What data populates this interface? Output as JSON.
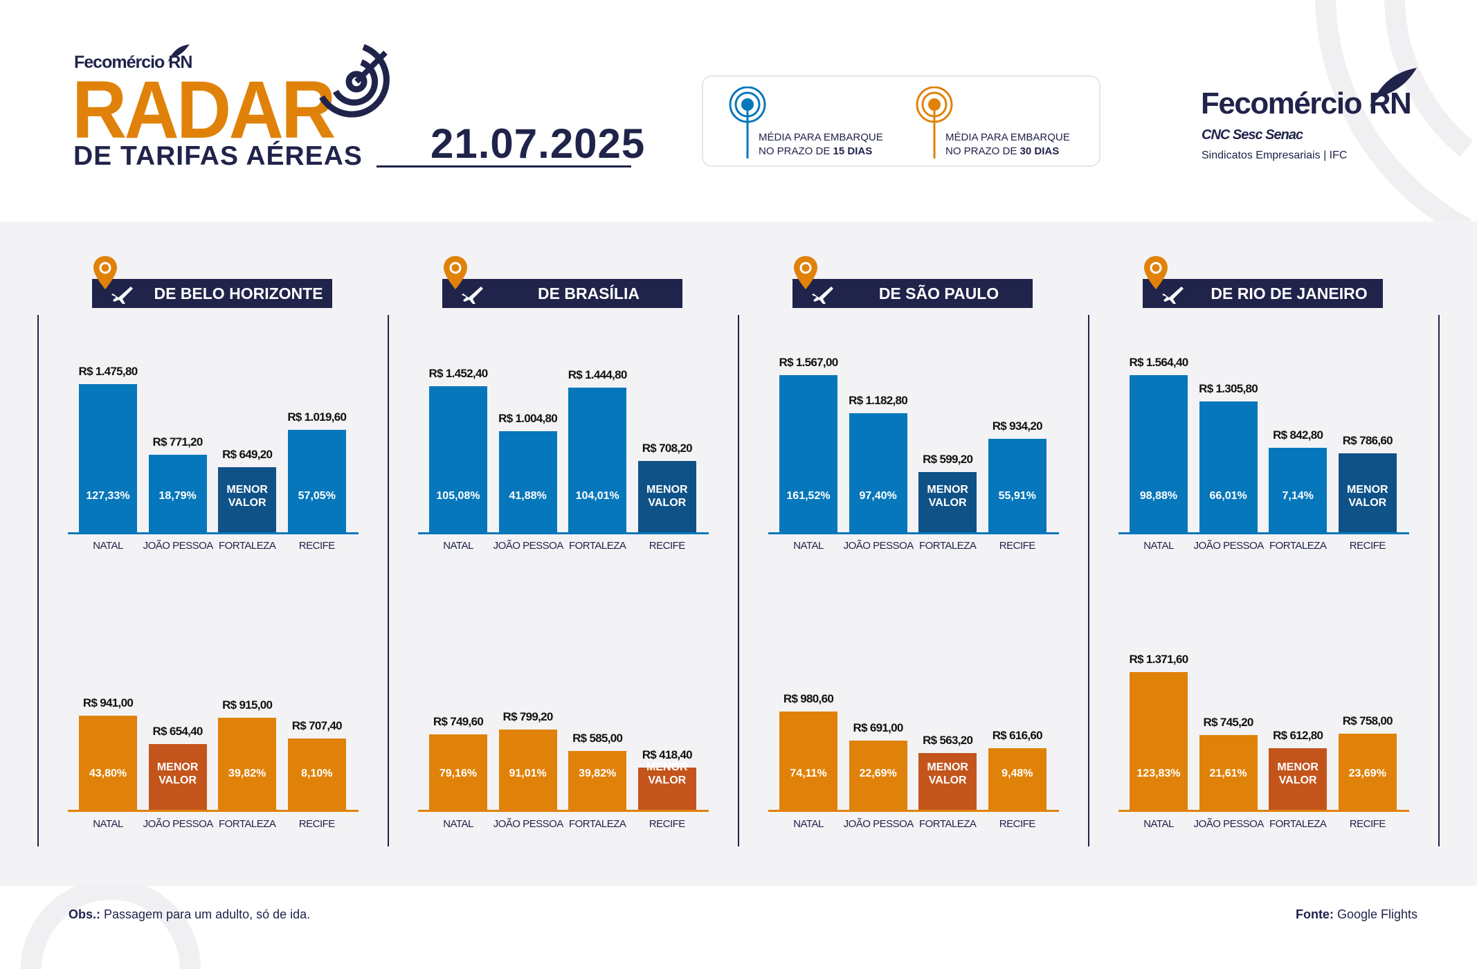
{
  "header": {
    "org_small": "Fecomércio RN",
    "title": "RADAR",
    "subtitle": "DE TARIFAS AÉREAS",
    "date": "21.07.2025",
    "legend": [
      {
        "icon": "radar-pin-blue-icon",
        "line1": "MÉDIA PARA EMBARQUE",
        "line2_prefix": "NO PRAZO DE ",
        "line2_bold": "15 DIAS",
        "color": "#0777bb"
      },
      {
        "icon": "radar-pin-orange-icon",
        "line1": "MÉDIA PARA EMBARQUE",
        "line2_prefix": "NO PRAZO DE ",
        "line2_bold": "30 DIAS",
        "color": "#e0820a"
      }
    ],
    "logo": {
      "name": "Fecomércio RN",
      "partners": "CNC Sesc Senac",
      "tagline": "Sindicatos Empresariais  |  IFC"
    }
  },
  "colors": {
    "blue": "#0777bb",
    "blue_lowest": "#0f5287",
    "orange": "#e0820a",
    "orange_lowest": "#c3551c",
    "navy": "#20234a",
    "panel": "#f3f3f5"
  },
  "lowest_label": [
    "MENOR",
    "VALOR"
  ],
  "chart_data": [
    {
      "type": "bar",
      "title": "DE BELO HORIZONTE",
      "categories": [
        "NATAL",
        "JOÃO PESSOA",
        "FORTALEZA",
        "RECIFE"
      ],
      "series": [
        {
          "period": "15 dias",
          "values": [
            1475.8,
            771.2,
            649.2,
            1019.6
          ],
          "labels": [
            "R$ 1.475,80",
            "R$ 771,20",
            "R$ 649,20",
            "R$ 1.019,60"
          ],
          "pct": [
            "127,33%",
            "18,79%",
            null,
            "57,05%"
          ]
        },
        {
          "period": "30 dias",
          "values": [
            941.0,
            654.4,
            915.0,
            707.4
          ],
          "labels": [
            "R$ 941,00",
            "R$ 654,40",
            "R$ 915,00",
            "R$ 707,40"
          ],
          "pct": [
            "43,80%",
            null,
            "39,82%",
            "8,10%"
          ]
        }
      ]
    },
    {
      "type": "bar",
      "title": "DE BRASÍLIA",
      "categories": [
        "NATAL",
        "JOÃO PESSOA",
        "FORTALEZA",
        "RECIFE"
      ],
      "series": [
        {
          "period": "15 dias",
          "values": [
            1452.4,
            1004.8,
            1444.8,
            708.2
          ],
          "labels": [
            "R$ 1.452,40",
            "R$ 1.004,80",
            "R$ 1.444,80",
            "R$ 708,20"
          ],
          "pct": [
            "105,08%",
            "41,88%",
            "104,01%",
            null
          ]
        },
        {
          "period": "30 dias",
          "values": [
            749.6,
            799.2,
            585.0,
            418.4
          ],
          "labels": [
            "R$ 749,60",
            "R$ 799,20",
            "R$ 585,00",
            "R$ 418,40"
          ],
          "pct": [
            "79,16%",
            "91,01%",
            "39,82%",
            null
          ]
        }
      ]
    },
    {
      "type": "bar",
      "title": "DE SÃO PAULO",
      "categories": [
        "NATAL",
        "JOÃO PESSOA",
        "FORTALEZA",
        "RECIFE"
      ],
      "series": [
        {
          "period": "15 dias",
          "values": [
            1567.0,
            1182.8,
            599.2,
            934.2
          ],
          "labels": [
            "R$ 1.567,00",
            "R$ 1.182,80",
            "R$ 599,20",
            "R$ 934,20"
          ],
          "pct": [
            "161,52%",
            "97,40%",
            null,
            "55,91%"
          ]
        },
        {
          "period": "30 dias",
          "values": [
            980.6,
            691.0,
            563.2,
            616.6
          ],
          "labels": [
            "R$ 980,60",
            "R$ 691,00",
            "R$ 563,20",
            "R$ 616,60"
          ],
          "pct": [
            "74,11%",
            "22,69%",
            null,
            "9,48%"
          ]
        }
      ]
    },
    {
      "type": "bar",
      "title": "DE RIO DE JANEIRO",
      "categories": [
        "NATAL",
        "JOÃO PESSOA",
        "FORTALEZA",
        "RECIFE"
      ],
      "series": [
        {
          "period": "15 dias",
          "values": [
            1564.4,
            1305.8,
            842.8,
            786.6
          ],
          "labels": [
            "R$ 1.564,40",
            "R$ 1.305,80",
            "R$ 842,80",
            "R$ 786,60"
          ],
          "pct": [
            "98,88%",
            "66,01%",
            "7,14%",
            null
          ]
        },
        {
          "period": "30 dias",
          "values": [
            1371.6,
            745.2,
            612.8,
            758.0
          ],
          "labels": [
            "R$ 1.371,60",
            "R$ 745,20",
            "R$ 612,80",
            "R$ 758,00"
          ],
          "pct": [
            "123,83%",
            "21,61%",
            null,
            "23,69%"
          ]
        }
      ]
    }
  ],
  "footer": {
    "obs_label": "Obs.:",
    "obs_text": " Passagem para um adulto, só de ida.",
    "source_label": "Fonte:",
    "source_text": " Google Flights"
  }
}
